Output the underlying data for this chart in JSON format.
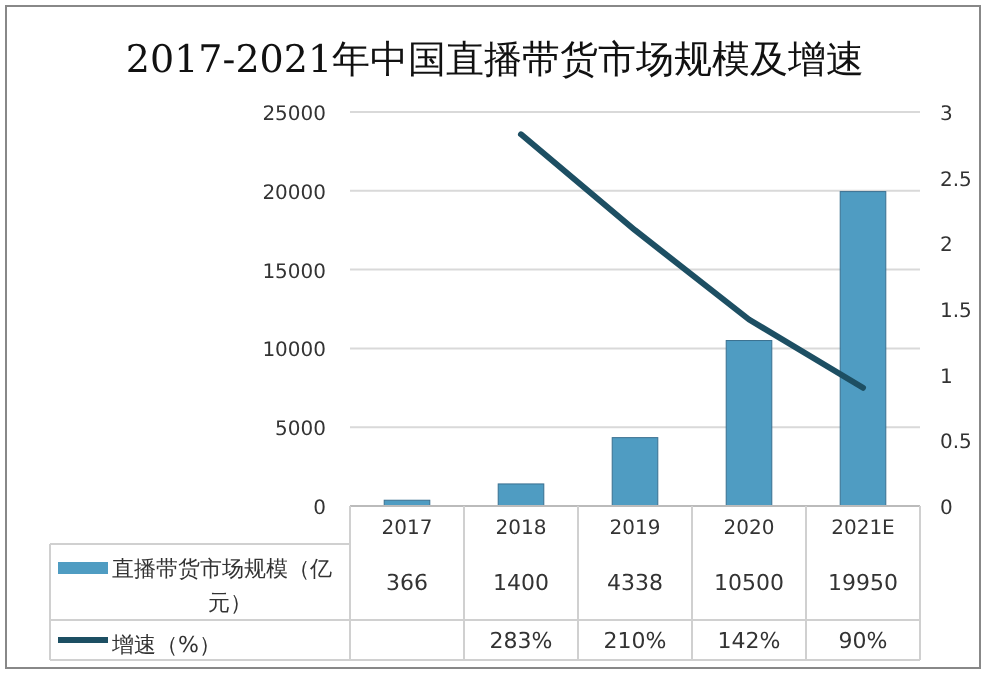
{
  "chart_data": {
    "type": "bar",
    "title": "2017-2021年中国直播带货市场规模及增速",
    "categories": [
      "2017",
      "2018",
      "2019",
      "2020",
      "2021E"
    ],
    "series": [
      {
        "name": "直播带货市场规模（亿元）",
        "color": "#4f9cc2",
        "values": [
          366,
          1400,
          4338,
          10500,
          19950
        ]
      },
      {
        "name": "增速（%）",
        "type": "line",
        "axis": "y2",
        "color": "#1d4f63",
        "values": [
          null,
          2.83,
          2.1,
          1.42,
          0.9
        ],
        "value_labels": [
          null,
          "283%",
          "210%",
          "142%",
          "90%"
        ]
      }
    ],
    "ylim": [
      0,
      25000
    ],
    "yticks": [
      0,
      5000,
      10000,
      15000,
      20000,
      25000
    ],
    "y2lim": [
      0,
      3
    ],
    "y2ticks": [
      0,
      0.5,
      1,
      1.5,
      2,
      2.5,
      3
    ],
    "grid": "y",
    "data_labels": true,
    "marker": "none",
    "legend": "bottom",
    "line_style": "solid"
  }
}
